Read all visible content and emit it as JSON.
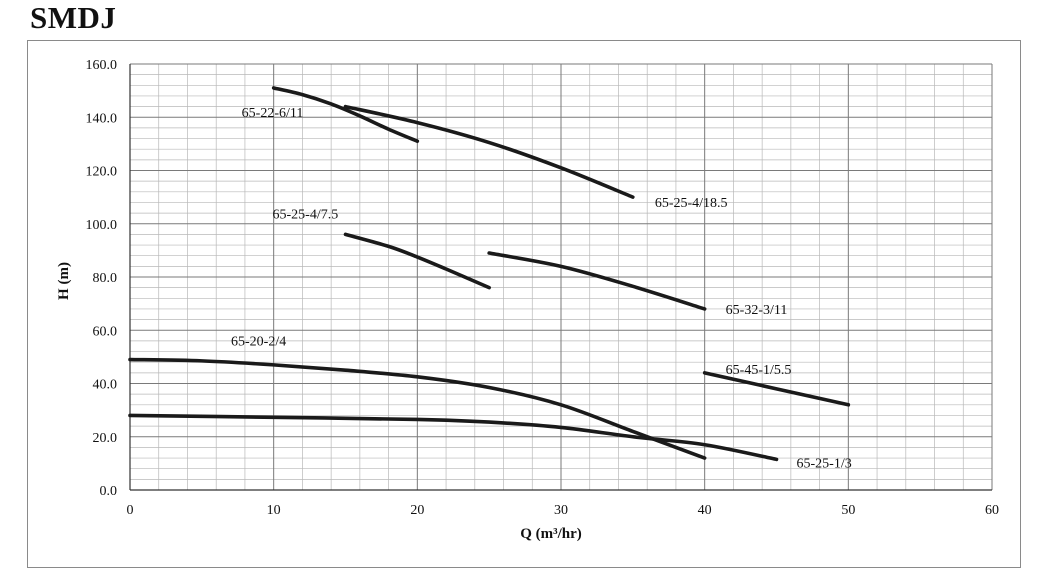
{
  "page": {
    "title": "SMDJ"
  },
  "chart_data": {
    "type": "line",
    "title": "SMDJ",
    "xlabel": "Q (m³/hr)",
    "ylabel": "H (m)",
    "xlim": [
      0,
      60
    ],
    "ylim": [
      0,
      160
    ],
    "x_ticks": [
      "0",
      "10",
      "20",
      "30",
      "40",
      "50",
      "60"
    ],
    "y_ticks": [
      "0.0",
      "20.0",
      "40.0",
      "60.0",
      "80.0",
      "100.0",
      "120.0",
      "140.0",
      "160.0"
    ],
    "grid": true,
    "legend": "none (series labeled inline)",
    "line_color": "#1a1a1a",
    "series": [
      {
        "name": "65-22-6/11",
        "x": [
          10,
          12,
          14,
          16,
          18,
          20
        ],
        "y": [
          151,
          148.5,
          145,
          140.5,
          135.5,
          131
        ]
      },
      {
        "name": "65-25-4/18.5",
        "x": [
          15,
          20,
          25,
          30,
          35
        ],
        "y": [
          144,
          138,
          130.5,
          121,
          110
        ]
      },
      {
        "name": "65-25-4/7.5",
        "x": [
          15,
          18,
          20,
          22,
          25
        ],
        "y": [
          96,
          91.5,
          87.5,
          83,
          76
        ]
      },
      {
        "name": "65-32-3/11",
        "x": [
          25,
          30,
          35,
          40
        ],
        "y": [
          89,
          84,
          76.5,
          68
        ]
      },
      {
        "name": "65-20-2/4",
        "x": [
          0,
          5,
          10,
          15,
          20,
          25,
          30,
          35,
          40
        ],
        "y": [
          49,
          48.5,
          47,
          45,
          42.5,
          38.5,
          32,
          22,
          12
        ]
      },
      {
        "name": "65-45-1/5.5",
        "x": [
          40,
          45,
          50
        ],
        "y": [
          44,
          38,
          32
        ]
      },
      {
        "name": "65-25-1/3",
        "x": [
          0,
          10,
          20,
          25,
          30,
          35,
          40,
          45
        ],
        "y": [
          28,
          27.3,
          26.5,
          25.5,
          23.5,
          20,
          17,
          11.5
        ]
      }
    ]
  }
}
